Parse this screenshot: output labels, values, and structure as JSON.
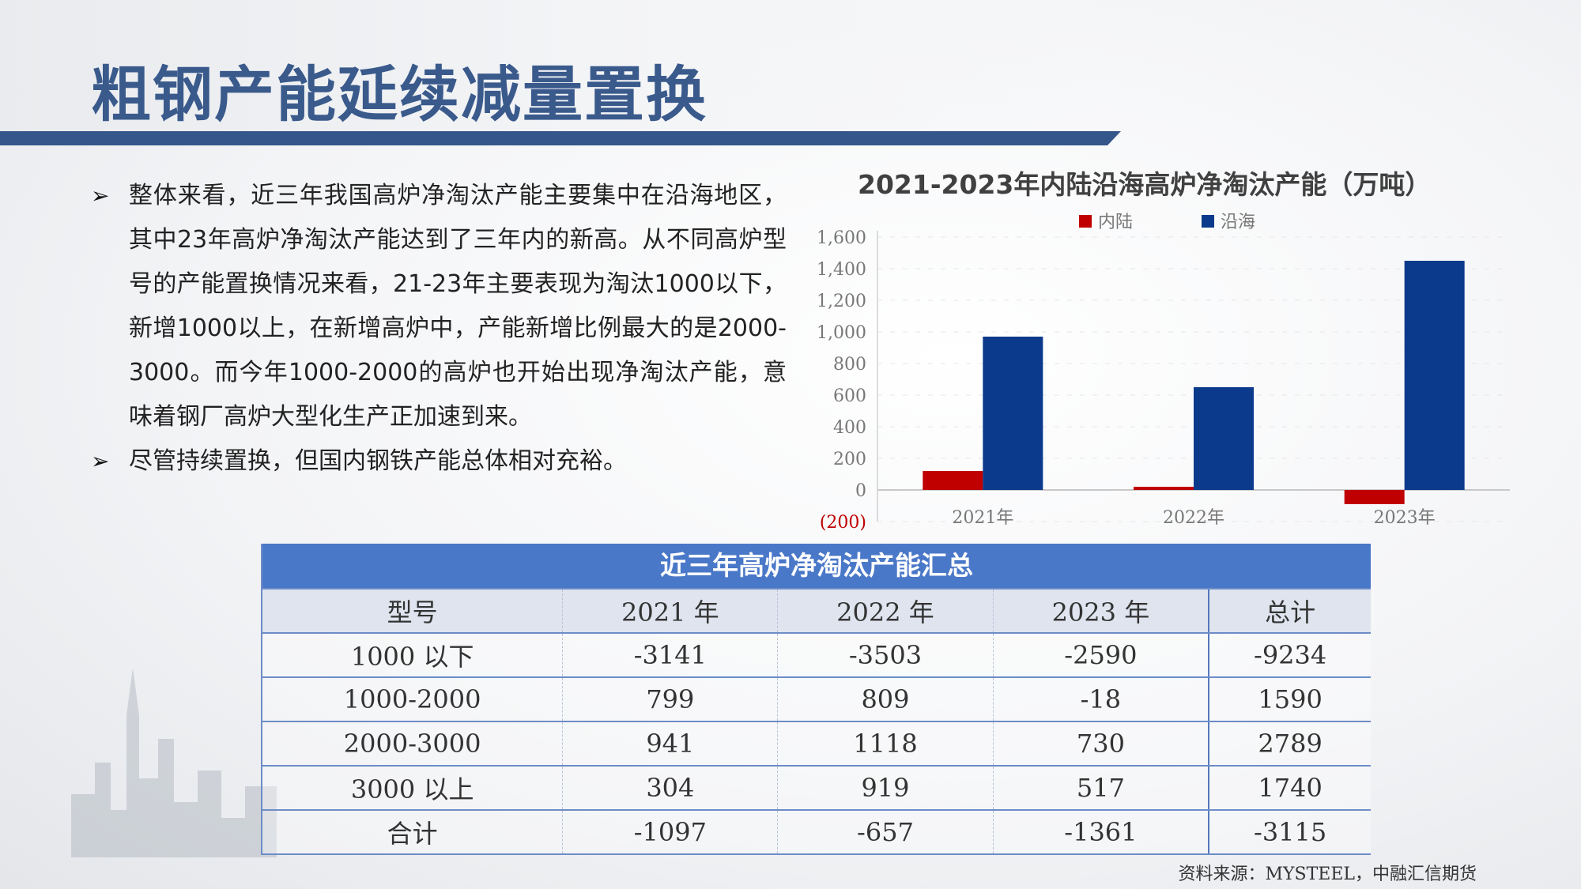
{
  "slide": {
    "title": "粗钢产能延续减量置换",
    "bullets": [
      "整体来看，近三年我国高炉净淘汰产能主要集中在沿海地区，其中23年高炉净淘汰产能达到了三年内的新高。从不同高炉型号的产能置换情况来看，21-23年主要表现为淘汰1000以下，新增1000以上，在新增高炉中，产能新增比例最大的是2000-3000。而今年1000-2000的高炉也开始出现净淘汰产能，意味着钢厂高炉大型化生产正加速到来。",
      "尽管持续置换，但国内钢铁产能总体相对充裕。"
    ],
    "source": "资料来源：MYSTEEL，中融汇信期货"
  },
  "chart_data": {
    "type": "bar",
    "title": "2021-2023年内陆沿海高炉净淘汰产能（万吨）",
    "categories": [
      "2021年",
      "2022年",
      "2023年"
    ],
    "series": [
      {
        "name": "内陆",
        "color": "#c00000",
        "values": [
          120,
          20,
          -90
        ]
      },
      {
        "name": "沿海",
        "color": "#0b3a8c",
        "values": [
          970,
          650,
          1450
        ]
      }
    ],
    "yticks": [
      "(200)",
      "0",
      "200",
      "400",
      "600",
      "800",
      "1,000",
      "1,200",
      "1,400",
      "1,600"
    ],
    "ylim": [
      -200,
      1600
    ],
    "legend_position": "top"
  },
  "table": {
    "caption": "近三年高炉净淘汰产能汇总",
    "headers": [
      "型号",
      "2021 年",
      "2022 年",
      "2023 年",
      "总计"
    ],
    "rows": [
      [
        "1000 以下",
        "-3141",
        "-3503",
        "-2590",
        "-9234"
      ],
      [
        "1000-2000",
        "799",
        "809",
        "-18",
        "1590"
      ],
      [
        "2000-3000",
        "941",
        "1118",
        "730",
        "2789"
      ],
      [
        "3000 以上",
        "304",
        "919",
        "517",
        "1740"
      ],
      [
        "合计",
        "-1097",
        "-657",
        "-1361",
        "-3115"
      ]
    ]
  }
}
